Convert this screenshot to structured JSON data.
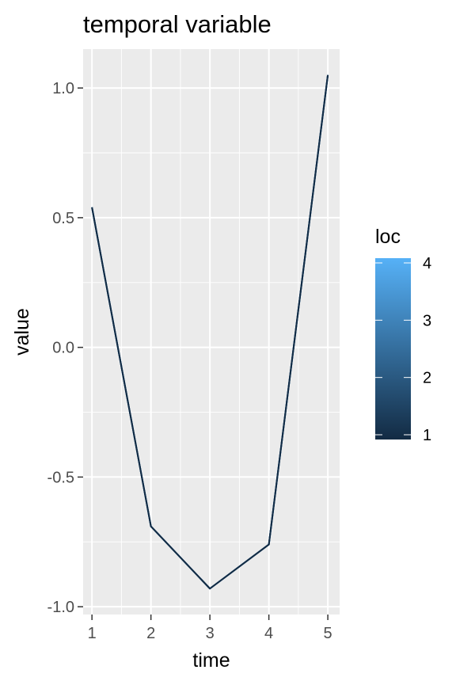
{
  "chart_data": {
    "type": "line",
    "title": "temporal variable",
    "xlabel": "time",
    "ylabel": "value",
    "x": [
      1,
      2,
      3,
      4,
      5
    ],
    "series": [
      {
        "values": [
          0.54,
          -0.69,
          -0.93,
          -0.76,
          1.05
        ],
        "loc": 4
      },
      {
        "values": [
          0.54,
          -0.69,
          -0.93,
          -0.76,
          1.05
        ],
        "loc": 3
      },
      {
        "values": [
          0.54,
          -0.69,
          -0.93,
          -0.76,
          1.05
        ],
        "loc": 2
      },
      {
        "values": [
          0.54,
          -0.69,
          -0.93,
          -0.76,
          1.05
        ],
        "loc": 1
      }
    ],
    "xlim": [
      0.85,
      5.2
    ],
    "ylim": [
      -1.03,
      1.15
    ],
    "x_ticks": [
      "1",
      "2",
      "3",
      "4",
      "5"
    ],
    "y_ticks": [
      "1.0",
      "0.5",
      "0.0",
      "-0.5",
      "-1.0"
    ],
    "grid": true,
    "legend": {
      "title": "loc",
      "type": "colorbar",
      "range": [
        1,
        4
      ],
      "labels": [
        "4",
        "3",
        "2",
        "1"
      ],
      "color_low": "#132B43",
      "color_high": "#56B1F7",
      "placement": "right"
    }
  }
}
